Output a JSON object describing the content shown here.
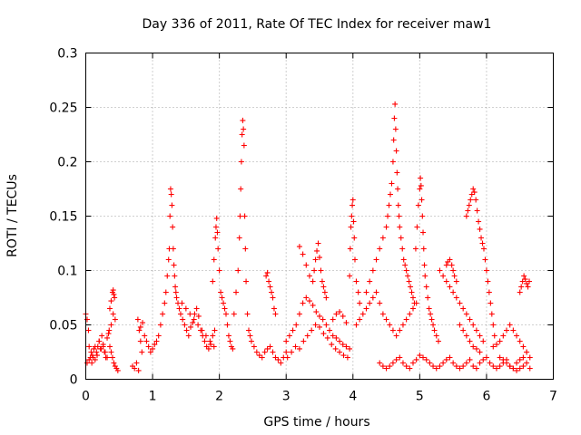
{
  "chart_data": {
    "type": "scatter",
    "title": "Day 336 of 2011, Rate Of TEC Index for receiver maw1",
    "xlabel": "GPS time / hours",
    "ylabel": "ROTI / TECUs",
    "xlim": [
      0,
      7
    ],
    "ylim": [
      0,
      0.3
    ],
    "grid": true,
    "marker": "plus",
    "color": "#ff0000",
    "x_ticks": [
      0,
      1,
      2,
      3,
      4,
      5,
      6,
      7
    ],
    "x_tick_labels": [
      "0",
      "1",
      "2",
      "3",
      "4",
      "5",
      "6",
      "7"
    ],
    "y_ticks": [
      0,
      0.05,
      0.1,
      0.15,
      0.2,
      0.25,
      0.3
    ],
    "y_tick_labels": [
      "0",
      "0.05",
      "0.1",
      "0.15",
      "0.2",
      "0.25",
      "0.3"
    ],
    "series": [
      {
        "name": "ROTI",
        "x": [
          0.0,
          0.02,
          0.04,
          0.05,
          0.07,
          0.09,
          0.1,
          0.12,
          0.14,
          0.16,
          0.18,
          0.2,
          0.22,
          0.24,
          0.26,
          0.28,
          0.3,
          0.32,
          0.34,
          0.36,
          0.38,
          0.4,
          0.42,
          0.44,
          0.46,
          0.48,
          0.02,
          0.05,
          0.08,
          0.11,
          0.14,
          0.17,
          0.2,
          0.23,
          0.26,
          0.29,
          0.32,
          0.35,
          0.38,
          0.41,
          0.44,
          0.36,
          0.38,
          0.4,
          0.41,
          0.42,
          0.43,
          0.7,
          0.73,
          0.76,
          0.79,
          0.82,
          0.85,
          0.88,
          0.91,
          0.94,
          0.97,
          1.0,
          1.03,
          1.06,
          1.09,
          1.12,
          0.78,
          0.8,
          0.82,
          0.84,
          1.15,
          1.18,
          1.2,
          1.22,
          1.24,
          1.25,
          1.26,
          1.27,
          1.28,
          1.29,
          1.3,
          1.31,
          1.32,
          1.33,
          1.34,
          1.35,
          1.36,
          1.38,
          1.4,
          1.42,
          1.45,
          1.48,
          1.51,
          1.54,
          1.57,
          1.6,
          1.63,
          1.66,
          1.69,
          1.72,
          1.75,
          1.78,
          1.81,
          1.84,
          1.87,
          1.9,
          1.93,
          1.44,
          1.5,
          1.56,
          1.62,
          1.68,
          1.74,
          1.8,
          1.86,
          1.92,
          1.9,
          1.92,
          1.94,
          1.95,
          1.96,
          1.97,
          1.98,
          2.0,
          2.02,
          2.04,
          2.06,
          2.08,
          2.1,
          2.12,
          2.14,
          2.16,
          2.18,
          2.2,
          2.22,
          2.25,
          2.28,
          2.3,
          2.31,
          2.32,
          2.33,
          2.34,
          2.35,
          2.36,
          2.37,
          2.38,
          2.39,
          2.4,
          2.42,
          2.44,
          2.46,
          2.48,
          2.52,
          2.56,
          2.6,
          2.64,
          2.68,
          2.72,
          2.76,
          2.8,
          2.84,
          2.88,
          2.92,
          2.96,
          3.0,
          2.7,
          2.72,
          2.74,
          2.76,
          2.78,
          2.8,
          2.82,
          2.84,
          3.0,
          3.05,
          3.1,
          3.15,
          3.2,
          3.25,
          3.3,
          3.35,
          3.4,
          3.45,
          3.5,
          3.55,
          3.6,
          3.65,
          3.7,
          3.75,
          3.8,
          3.85,
          3.9,
          3.95,
          3.02,
          3.08,
          3.14,
          3.2,
          3.26,
          3.32,
          3.38,
          3.44,
          3.5,
          3.56,
          3.62,
          3.68,
          3.74,
          3.8,
          3.86,
          3.92,
          3.2,
          3.25,
          3.3,
          3.35,
          3.4,
          3.42,
          3.44,
          3.46,
          3.48,
          3.5,
          3.52,
          3.54,
          3.56,
          3.58,
          3.6,
          3.7,
          3.75,
          3.8,
          3.85,
          3.9,
          3.95,
          3.96,
          3.97,
          3.98,
          3.99,
          4.0,
          4.01,
          4.02,
          4.03,
          4.05,
          4.08,
          4.1,
          4.05,
          4.1,
          4.15,
          4.2,
          4.25,
          4.3,
          4.35,
          4.4,
          4.45,
          4.5,
          4.55,
          4.6,
          4.65,
          4.7,
          4.75,
          4.8,
          4.85,
          4.9,
          4.95,
          4.2,
          4.25,
          4.3,
          4.35,
          4.4,
          4.45,
          4.5,
          4.52,
          4.54,
          4.56,
          4.58,
          4.6,
          4.61,
          4.62,
          4.63,
          4.64,
          4.65,
          4.66,
          4.67,
          4.68,
          4.69,
          4.7,
          4.72,
          4.74,
          4.76,
          4.78,
          4.8,
          4.82,
          4.84,
          4.86,
          4.88,
          4.9,
          4.92,
          4.4,
          4.45,
          4.5,
          4.55,
          4.6,
          4.65,
          4.7,
          4.75,
          4.8,
          4.85,
          4.9,
          4.95,
          5.0,
          5.05,
          5.1,
          5.15,
          5.2,
          5.25,
          5.3,
          5.35,
          5.4,
          5.45,
          5.5,
          5.55,
          5.6,
          5.65,
          5.7,
          5.75,
          5.8,
          5.85,
          5.9,
          5.95,
          6.0,
          6.05,
          6.1,
          6.15,
          6.2,
          6.25,
          6.3,
          6.35,
          6.4,
          6.45,
          6.5,
          6.55,
          6.6,
          6.65,
          4.94,
          4.96,
          4.98,
          5.0,
          5.01,
          5.02,
          5.03,
          5.04,
          5.05,
          5.06,
          5.07,
          5.08,
          5.1,
          5.12,
          5.14,
          5.16,
          5.18,
          5.2,
          5.22,
          5.25,
          5.28,
          5.3,
          5.35,
          5.4,
          5.45,
          5.5,
          5.55,
          5.6,
          5.65,
          5.7,
          5.75,
          5.8,
          5.85,
          5.9,
          5.95,
          5.4,
          5.42,
          5.45,
          5.48,
          5.5,
          5.52,
          5.55,
          5.7,
          5.72,
          5.74,
          5.76,
          5.78,
          5.8,
          5.82,
          5.84,
          5.86,
          5.88,
          5.9,
          5.92,
          5.94,
          5.96,
          5.98,
          6.0,
          6.02,
          6.04,
          6.06,
          6.08,
          6.1,
          6.12,
          5.6,
          5.65,
          5.7,
          5.75,
          5.8,
          5.85,
          5.9,
          6.1,
          6.15,
          6.2,
          6.25,
          6.3,
          6.35,
          6.4,
          6.45,
          6.5,
          6.55,
          6.6,
          6.65,
          6.5,
          6.52,
          6.54,
          6.56,
          6.58,
          6.6,
          6.62,
          6.64,
          6.2,
          6.25,
          6.3,
          6.35,
          6.4,
          6.45,
          6.5,
          6.55,
          6.6
        ],
        "y": [
          0.06,
          0.055,
          0.045,
          0.03,
          0.02,
          0.015,
          0.022,
          0.028,
          0.018,
          0.025,
          0.03,
          0.035,
          0.028,
          0.04,
          0.032,
          0.025,
          0.02,
          0.038,
          0.042,
          0.03,
          0.025,
          0.02,
          0.015,
          0.012,
          0.01,
          0.008,
          0.015,
          0.018,
          0.025,
          0.02,
          0.03,
          0.022,
          0.035,
          0.028,
          0.03,
          0.025,
          0.02,
          0.045,
          0.05,
          0.06,
          0.055,
          0.065,
          0.072,
          0.08,
          0.082,
          0.078,
          0.075,
          0.012,
          0.01,
          0.015,
          0.008,
          0.048,
          0.052,
          0.04,
          0.035,
          0.03,
          0.025,
          0.028,
          0.032,
          0.035,
          0.04,
          0.05,
          0.055,
          0.045,
          0.035,
          0.025,
          0.06,
          0.07,
          0.08,
          0.095,
          0.11,
          0.12,
          0.15,
          0.175,
          0.17,
          0.16,
          0.14,
          0.12,
          0.105,
          0.095,
          0.085,
          0.08,
          0.075,
          0.07,
          0.065,
          0.06,
          0.055,
          0.05,
          0.045,
          0.04,
          0.048,
          0.052,
          0.06,
          0.065,
          0.058,
          0.045,
          0.04,
          0.035,
          0.03,
          0.028,
          0.032,
          0.04,
          0.045,
          0.07,
          0.065,
          0.06,
          0.055,
          0.05,
          0.045,
          0.04,
          0.035,
          0.03,
          0.09,
          0.11,
          0.13,
          0.14,
          0.148,
          0.135,
          0.12,
          0.1,
          0.08,
          0.075,
          0.07,
          0.065,
          0.06,
          0.05,
          0.04,
          0.035,
          0.03,
          0.028,
          0.06,
          0.08,
          0.1,
          0.13,
          0.15,
          0.175,
          0.2,
          0.225,
          0.238,
          0.23,
          0.215,
          0.15,
          0.12,
          0.09,
          0.06,
          0.045,
          0.04,
          0.035,
          0.03,
          0.025,
          0.022,
          0.02,
          0.025,
          0.028,
          0.03,
          0.025,
          0.02,
          0.018,
          0.015,
          0.02,
          0.025,
          0.095,
          0.098,
          0.09,
          0.085,
          0.08,
          0.075,
          0.065,
          0.06,
          0.035,
          0.04,
          0.045,
          0.05,
          0.06,
          0.07,
          0.075,
          0.072,
          0.068,
          0.062,
          0.058,
          0.055,
          0.05,
          0.045,
          0.04,
          0.038,
          0.035,
          0.032,
          0.03,
          0.028,
          0.02,
          0.025,
          0.03,
          0.028,
          0.035,
          0.04,
          0.045,
          0.05,
          0.048,
          0.042,
          0.038,
          0.032,
          0.028,
          0.025,
          0.022,
          0.02,
          0.122,
          0.115,
          0.105,
          0.095,
          0.09,
          0.1,
          0.11,
          0.118,
          0.125,
          0.112,
          0.1,
          0.09,
          0.085,
          0.08,
          0.075,
          0.055,
          0.06,
          0.062,
          0.058,
          0.052,
          0.095,
          0.12,
          0.14,
          0.15,
          0.16,
          0.165,
          0.145,
          0.13,
          0.11,
          0.09,
          0.08,
          0.07,
          0.05,
          0.055,
          0.06,
          0.065,
          0.07,
          0.075,
          0.08,
          0.07,
          0.06,
          0.055,
          0.05,
          0.045,
          0.04,
          0.045,
          0.05,
          0.055,
          0.06,
          0.065,
          0.07,
          0.08,
          0.09,
          0.1,
          0.11,
          0.12,
          0.13,
          0.14,
          0.15,
          0.16,
          0.17,
          0.18,
          0.2,
          0.22,
          0.24,
          0.253,
          0.23,
          0.21,
          0.19,
          0.175,
          0.16,
          0.15,
          0.14,
          0.13,
          0.12,
          0.11,
          0.105,
          0.1,
          0.095,
          0.09,
          0.085,
          0.08,
          0.075,
          0.07,
          0.015,
          0.012,
          0.01,
          0.012,
          0.015,
          0.018,
          0.02,
          0.015,
          0.012,
          0.01,
          0.015,
          0.018,
          0.022,
          0.02,
          0.018,
          0.015,
          0.012,
          0.01,
          0.012,
          0.015,
          0.018,
          0.02,
          0.015,
          0.012,
          0.01,
          0.012,
          0.015,
          0.018,
          0.012,
          0.01,
          0.015,
          0.018,
          0.02,
          0.015,
          0.012,
          0.01,
          0.012,
          0.015,
          0.018,
          0.012,
          0.01,
          0.008,
          0.01,
          0.012,
          0.015,
          0.01,
          0.12,
          0.14,
          0.16,
          0.175,
          0.185,
          0.178,
          0.165,
          0.15,
          0.135,
          0.12,
          0.105,
          0.095,
          0.085,
          0.075,
          0.065,
          0.06,
          0.055,
          0.05,
          0.045,
          0.04,
          0.035,
          0.1,
          0.095,
          0.09,
          0.085,
          0.08,
          0.075,
          0.07,
          0.065,
          0.06,
          0.055,
          0.05,
          0.045,
          0.04,
          0.035,
          0.105,
          0.108,
          0.11,
          0.105,
          0.1,
          0.095,
          0.09,
          0.15,
          0.155,
          0.16,
          0.165,
          0.17,
          0.175,
          0.172,
          0.165,
          0.155,
          0.145,
          0.138,
          0.13,
          0.125,
          0.12,
          0.11,
          0.1,
          0.09,
          0.08,
          0.07,
          0.06,
          0.05,
          0.04,
          0.05,
          0.045,
          0.04,
          0.035,
          0.03,
          0.028,
          0.025,
          0.03,
          0.032,
          0.035,
          0.04,
          0.045,
          0.05,
          0.045,
          0.04,
          0.035,
          0.03,
          0.025,
          0.02,
          0.08,
          0.085,
          0.09,
          0.095,
          0.092,
          0.088,
          0.085,
          0.09,
          0.02,
          0.018,
          0.015,
          0.012,
          0.01,
          0.015,
          0.018,
          0.02,
          0.025
        ]
      }
    ]
  }
}
